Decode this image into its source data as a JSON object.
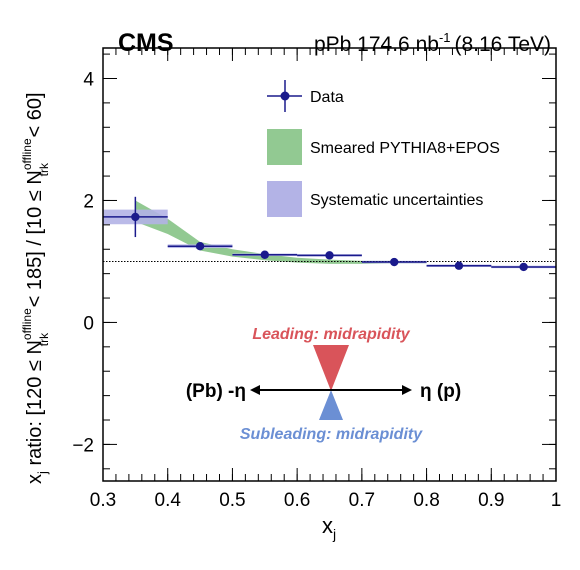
{
  "header": {
    "experiment": "CMS",
    "dataset_main": "pPb 174.6 nb",
    "dataset_sup": "-1",
    "energy": "(8.16 TeV)"
  },
  "axes": {
    "xlabel_main": "x",
    "xlabel_sub": "j",
    "ylabel": {
      "p1": "x",
      "p1_sub": "j",
      "p2": " ratio: [120 ≤ N",
      "p3_sup": "offline",
      "p3_sub": "trk",
      "p4": " < 185] / [10 ≤ N",
      "p5_sup": "offline",
      "p5_sub": "trk",
      "p6": " < 60]"
    }
  },
  "legend": {
    "data": "Data",
    "model": "Smeared PYTHIA8+EPOS",
    "syst": "Systematic uncertainties"
  },
  "inset": {
    "leading": "Leading: midrapidity",
    "subleading": "Subleading: midrapidity",
    "left": "(Pb) -η",
    "right": "η (p)"
  },
  "colors": {
    "data": "#1a1a8c",
    "model_band": "#7fbf7f",
    "syst_band": "#b3b3e6",
    "leading_triangle": "#d9545a",
    "subleading_triangle": "#6b8fd4",
    "leading_text": "#d9545a",
    "subleading_text": "#6b8fd4"
  },
  "chart_data": {
    "type": "scatter",
    "xlim": [
      0.3,
      1.0
    ],
    "ylim": [
      -2.6,
      4.5
    ],
    "xticks": [
      0.3,
      0.4,
      0.5,
      0.6,
      0.7,
      0.8,
      0.9,
      1.0
    ],
    "xtick_labels": [
      "0.3",
      "0.4",
      "0.5",
      "0.6",
      "0.7",
      "0.8",
      "0.9",
      "1"
    ],
    "yticks": [
      -2,
      0,
      2,
      4
    ],
    "ytick_labels": [
      "−2",
      "0",
      "2",
      "4"
    ],
    "reference_line": 1.0,
    "data": {
      "x": [
        0.35,
        0.45,
        0.55,
        0.65,
        0.75,
        0.85,
        0.95
      ],
      "xerr": [
        0.05,
        0.05,
        0.05,
        0.05,
        0.05,
        0.05,
        0.05
      ],
      "y": [
        1.73,
        1.25,
        1.11,
        1.1,
        0.99,
        0.93,
        0.91
      ],
      "yerr": [
        0.33,
        0.04,
        0.03,
        0.03,
        0.02,
        0.02,
        0.02
      ],
      "syst": [
        0.12,
        0.03,
        0.02,
        0.02,
        0.02,
        0.02,
        0.02
      ]
    },
    "model_band": {
      "x": [
        0.35,
        0.4,
        0.45,
        0.5,
        0.55,
        0.6,
        0.65,
        0.7,
        0.75,
        0.8
      ],
      "lo": [
        1.65,
        1.45,
        1.18,
        1.08,
        1.02,
        0.98,
        0.96,
        0.96,
        0.97,
        0.97
      ],
      "hi": [
        2.0,
        1.7,
        1.32,
        1.2,
        1.12,
        1.06,
        1.03,
        1.01,
        1.01,
        1.0
      ]
    }
  }
}
